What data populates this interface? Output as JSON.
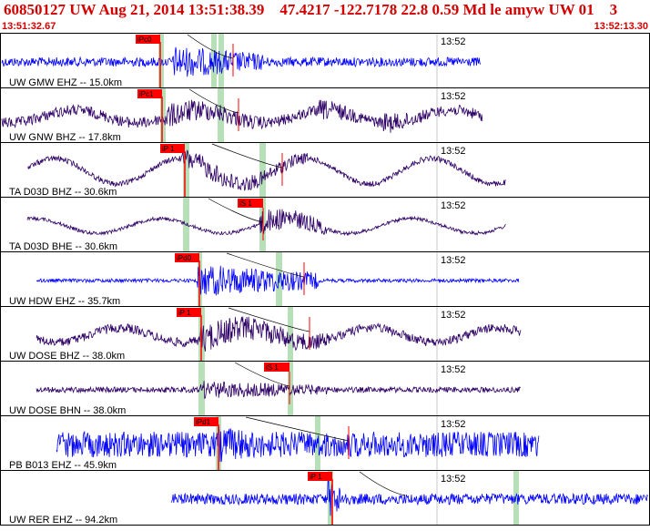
{
  "header": {
    "title": "60850127 UW Aug 21, 2014 13:51:38.39    47.4217 -122.7178 22.8 0.59 Md le amyw UW 01    3",
    "start_time": "13:51:32.67",
    "end_time": "13:52:13.30"
  },
  "colors": {
    "header_text": "#d40000",
    "trace_blue": "#0000ff",
    "trace_purple": "#2e0066",
    "pick_red": "#ff0000",
    "window_green": "#b8e0b8",
    "border": "#000000"
  },
  "minute_label": "13:52",
  "channels": [
    {
      "label": "UW GMW EHZ -- 15.0km",
      "pick_label": "iPc0",
      "pick2_label": ""
    },
    {
      "label": "UW GNW BHZ -- 17.8km",
      "pick_label": "iPc1",
      "pick2_label": ""
    },
    {
      "label": "TA D03D BHZ -- 30.6km",
      "pick_label": "iP 1",
      "pick2_label": ""
    },
    {
      "label": "TA D03D BHE -- 30.6km",
      "pick_label": "",
      "pick2_label": "iS 1"
    },
    {
      "label": "UW HDW EHZ -- 35.7km",
      "pick_label": "iPd0",
      "pick2_label": ""
    },
    {
      "label": "UW DOSE BHZ -- 38.0km",
      "pick_label": "iP 1",
      "pick2_label": ""
    },
    {
      "label": "UW DOSE BHN -- 38.0km",
      "pick_label": "",
      "pick2_label": "iS 1"
    },
    {
      "label": "PB B013 EHZ -- 45.9km",
      "pick_label": "iPd1",
      "pick2_label": ""
    },
    {
      "label": "UW RER EHZ -- 94.2km",
      "pick_label": "iP 1",
      "pick2_label": ""
    }
  ]
}
